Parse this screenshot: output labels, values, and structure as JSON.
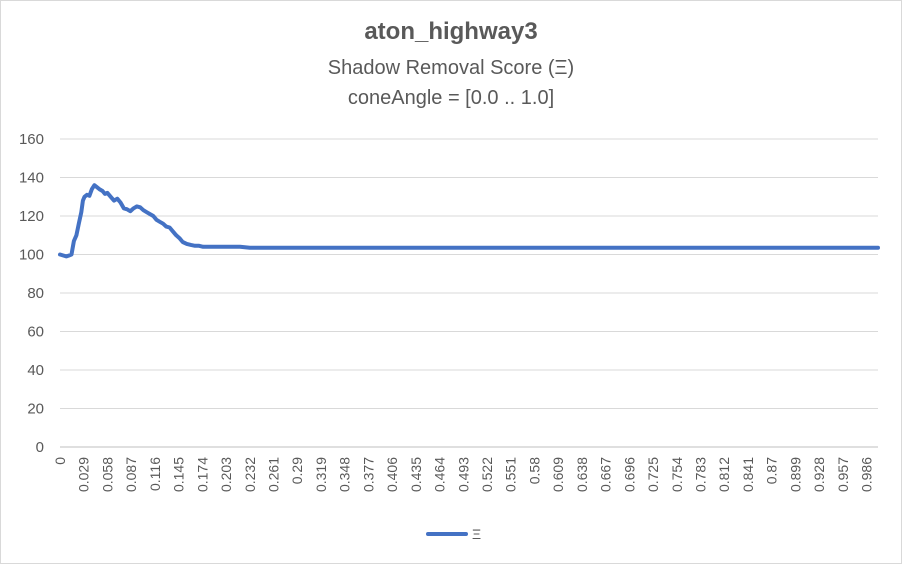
{
  "chart_data": {
    "type": "line",
    "title": "aton_highway3",
    "subtitle1": "Shadow Removal Score (Ξ)",
    "subtitle2": "coneAngle = [0.0 .. 1.0]",
    "xlabel": "",
    "ylabel": "",
    "ylim": [
      0,
      160
    ],
    "yticks": [
      0,
      20,
      40,
      60,
      80,
      100,
      120,
      140,
      160
    ],
    "xlim": [
      0,
      1.0
    ],
    "xticks": [
      "0",
      "0.029",
      "0.058",
      "0.087",
      "0.116",
      "0.145",
      "0.174",
      "0.203",
      "0.232",
      "0.261",
      "0.29",
      "0.319",
      "0.348",
      "0.377",
      "0.406",
      "0.435",
      "0.464",
      "0.493",
      "0.522",
      "0.551",
      "0.58",
      "0.609",
      "0.638",
      "0.667",
      "0.696",
      "0.725",
      "0.754",
      "0.783",
      "0.812",
      "0.841",
      "0.87",
      "0.899",
      "0.928",
      "0.957",
      "0.986"
    ],
    "grid": true,
    "legend_position": "bottom",
    "series": [
      {
        "name": "Ξ",
        "color": "#4472c4",
        "x": [
          0,
          0.004,
          0.008,
          0.011,
          0.014,
          0.017,
          0.02,
          0.023,
          0.026,
          0.028,
          0.03,
          0.033,
          0.036,
          0.039,
          0.042,
          0.045,
          0.048,
          0.052,
          0.055,
          0.058,
          0.062,
          0.066,
          0.07,
          0.074,
          0.078,
          0.082,
          0.086,
          0.09,
          0.094,
          0.098,
          0.102,
          0.106,
          0.11,
          0.114,
          0.118,
          0.122,
          0.126,
          0.13,
          0.134,
          0.138,
          0.142,
          0.146,
          0.15,
          0.155,
          0.16,
          0.165,
          0.17,
          0.175,
          0.18,
          0.185,
          0.19,
          0.2,
          0.21,
          0.22,
          0.232,
          0.24,
          0.26,
          0.3,
          0.4,
          0.5,
          0.6,
          0.7,
          0.8,
          0.9,
          1.0
        ],
        "values": [
          100,
          99.5,
          99,
          99.5,
          100,
          107,
          110,
          116,
          122,
          128,
          130,
          131,
          130.5,
          134,
          136,
          135,
          134,
          133,
          131.5,
          132,
          130,
          128,
          129,
          127,
          124,
          123.5,
          122.5,
          124,
          125,
          124.5,
          123,
          122,
          121,
          120,
          118,
          117,
          116,
          114.5,
          114,
          112,
          110,
          108.5,
          106.5,
          105.5,
          105,
          104.5,
          104.5,
          104,
          104,
          104,
          104,
          104,
          104,
          104,
          103.5,
          103.5,
          103.5,
          103.5,
          103.5,
          103.5,
          103.5,
          103.5,
          103.5,
          103.5,
          103.5
        ]
      }
    ]
  }
}
